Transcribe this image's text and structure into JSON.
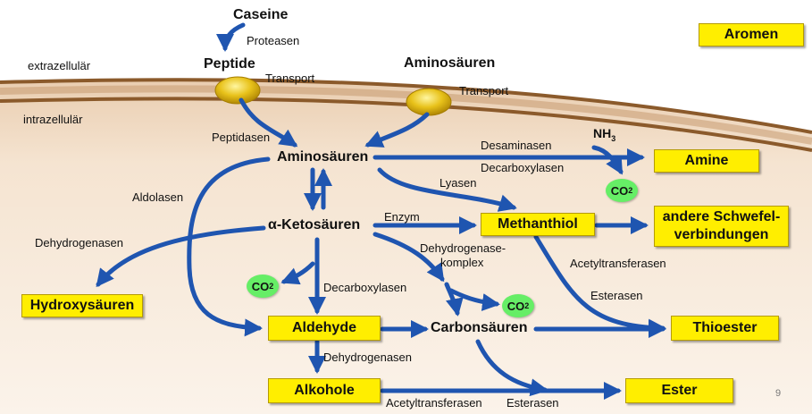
{
  "labels": {
    "caseine": "Caseine",
    "proteasen": "Proteasen",
    "peptide": "Peptide",
    "transport1": "Transport",
    "transport2": "Transport",
    "aminosaeuren_top": "Aminosäuren",
    "extrazellular": "extrazellulär",
    "intrazellular": "intrazellulär",
    "peptidasen": "Peptidasen",
    "aminosaeuren": "Aminosäuren",
    "desaminasen": "Desaminasen",
    "decarboxylasen1": "Decarboxylasen",
    "lyasen": "Lyasen",
    "aldolasen": "Aldolasen",
    "ketosaeuren": "α-Ketosäuren",
    "enzym": "Enzym",
    "dehydrogenasen1": "Dehydrogenasen",
    "dh_komplex_1": "Dehydrogenase-",
    "dh_komplex_2": "komplex",
    "acetyltransferasen1": "Acetyltransferasen",
    "decarboxylasen2": "Decarboxylasen",
    "esterasen1": "Esterasen",
    "carbonsaeuren": "Carbonsäuren",
    "dehydrogenasen2": "Dehydrogenasen",
    "acetyltransferasen2": "Acetyltransferasen",
    "esterasen2": "Esterasen",
    "page_number": "9"
  },
  "boxes": {
    "aromen": "Aromen",
    "amine": "Amine",
    "methanthiol": "Methanthiol",
    "schwefel": "andere Schwefel-verbindungen",
    "hydroxysaeuren": "Hydroxysäuren",
    "aldehyde": "Aldehyde",
    "thioester": "Thioester",
    "alkohole": "Alkohole",
    "ester": "Ester"
  },
  "chem": {
    "nh3": "NH",
    "nh3_sub": "3",
    "co2": "CO",
    "co2_sub": "2"
  },
  "colors": {
    "arrow": "#1f55b0",
    "box_fill": "#ffee00",
    "co2_fill": "#66ee66",
    "membrane": "#8b5a2b",
    "cell_fill": "#f6e5d2"
  }
}
